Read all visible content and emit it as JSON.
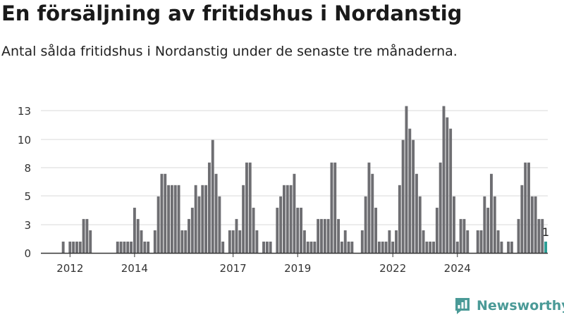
{
  "header": {
    "title": "En försäljning av fritidshus i Nordanstig",
    "subtitle": "Antal sålda fritidshus i Nordanstig under de senaste tre månaderna."
  },
  "brand": {
    "name": "Newsworthy",
    "icon": "newsworthy-logo-icon",
    "color": "#4a9a97"
  },
  "colors": {
    "bar": "#6e6e72",
    "highlight": "#2a9d94",
    "grid": "#d9d9d9",
    "axis": "#333333"
  },
  "chart_data": {
    "type": "bar",
    "title": "En försäljning av fritidshus i Nordanstig",
    "subtitle": "Antal sålda fritidshus i Nordanstig under de senaste tre månaderna.",
    "xlabel": "",
    "ylabel": "",
    "yticks": [
      0,
      3,
      5,
      8,
      10,
      13
    ],
    "ylim": [
      0,
      13.5
    ],
    "grid": true,
    "xticks": [
      {
        "label": "2012",
        "index": 7
      },
      {
        "label": "2014",
        "index": 26
      },
      {
        "label": "2017",
        "index": 55
      },
      {
        "label": "2019",
        "index": 74
      },
      {
        "label": "2022",
        "index": 102
      },
      {
        "label": "2024",
        "index": 121
      }
    ],
    "x_first": "2011-01",
    "x_last": "2024-01",
    "highlight_last": true,
    "last_value_label": "1",
    "values": [
      0,
      0,
      0,
      0,
      0,
      1,
      0,
      1,
      1,
      1,
      1,
      3,
      3,
      2,
      0,
      0,
      0,
      0,
      0,
      0,
      0,
      1,
      1,
      1,
      1,
      1,
      4,
      3,
      2,
      1,
      1,
      0,
      2,
      5,
      7,
      7,
      6,
      6,
      6,
      6,
      2,
      2,
      3,
      4,
      6,
      5,
      6,
      6,
      8,
      10,
      7,
      5,
      1,
      0,
      2,
      2,
      3,
      2,
      6,
      8,
      8,
      4,
      2,
      0,
      1,
      1,
      1,
      0,
      4,
      5,
      6,
      6,
      6,
      7,
      4,
      4,
      2,
      1,
      1,
      1,
      3,
      3,
      3,
      3,
      8,
      8,
      3,
      1,
      2,
      1,
      1,
      0,
      0,
      2,
      5,
      8,
      7,
      4,
      1,
      1,
      1,
      2,
      1,
      2,
      6,
      10,
      13,
      11,
      10,
      7,
      5,
      2,
      1,
      1,
      1,
      4,
      8,
      13,
      12,
      11,
      5,
      1,
      3,
      3,
      2,
      0,
      0,
      2,
      2,
      5,
      4,
      7,
      5,
      2,
      1,
      0,
      1,
      1,
      0,
      3,
      6,
      8,
      8,
      5,
      5,
      3,
      3,
      1
    ]
  }
}
